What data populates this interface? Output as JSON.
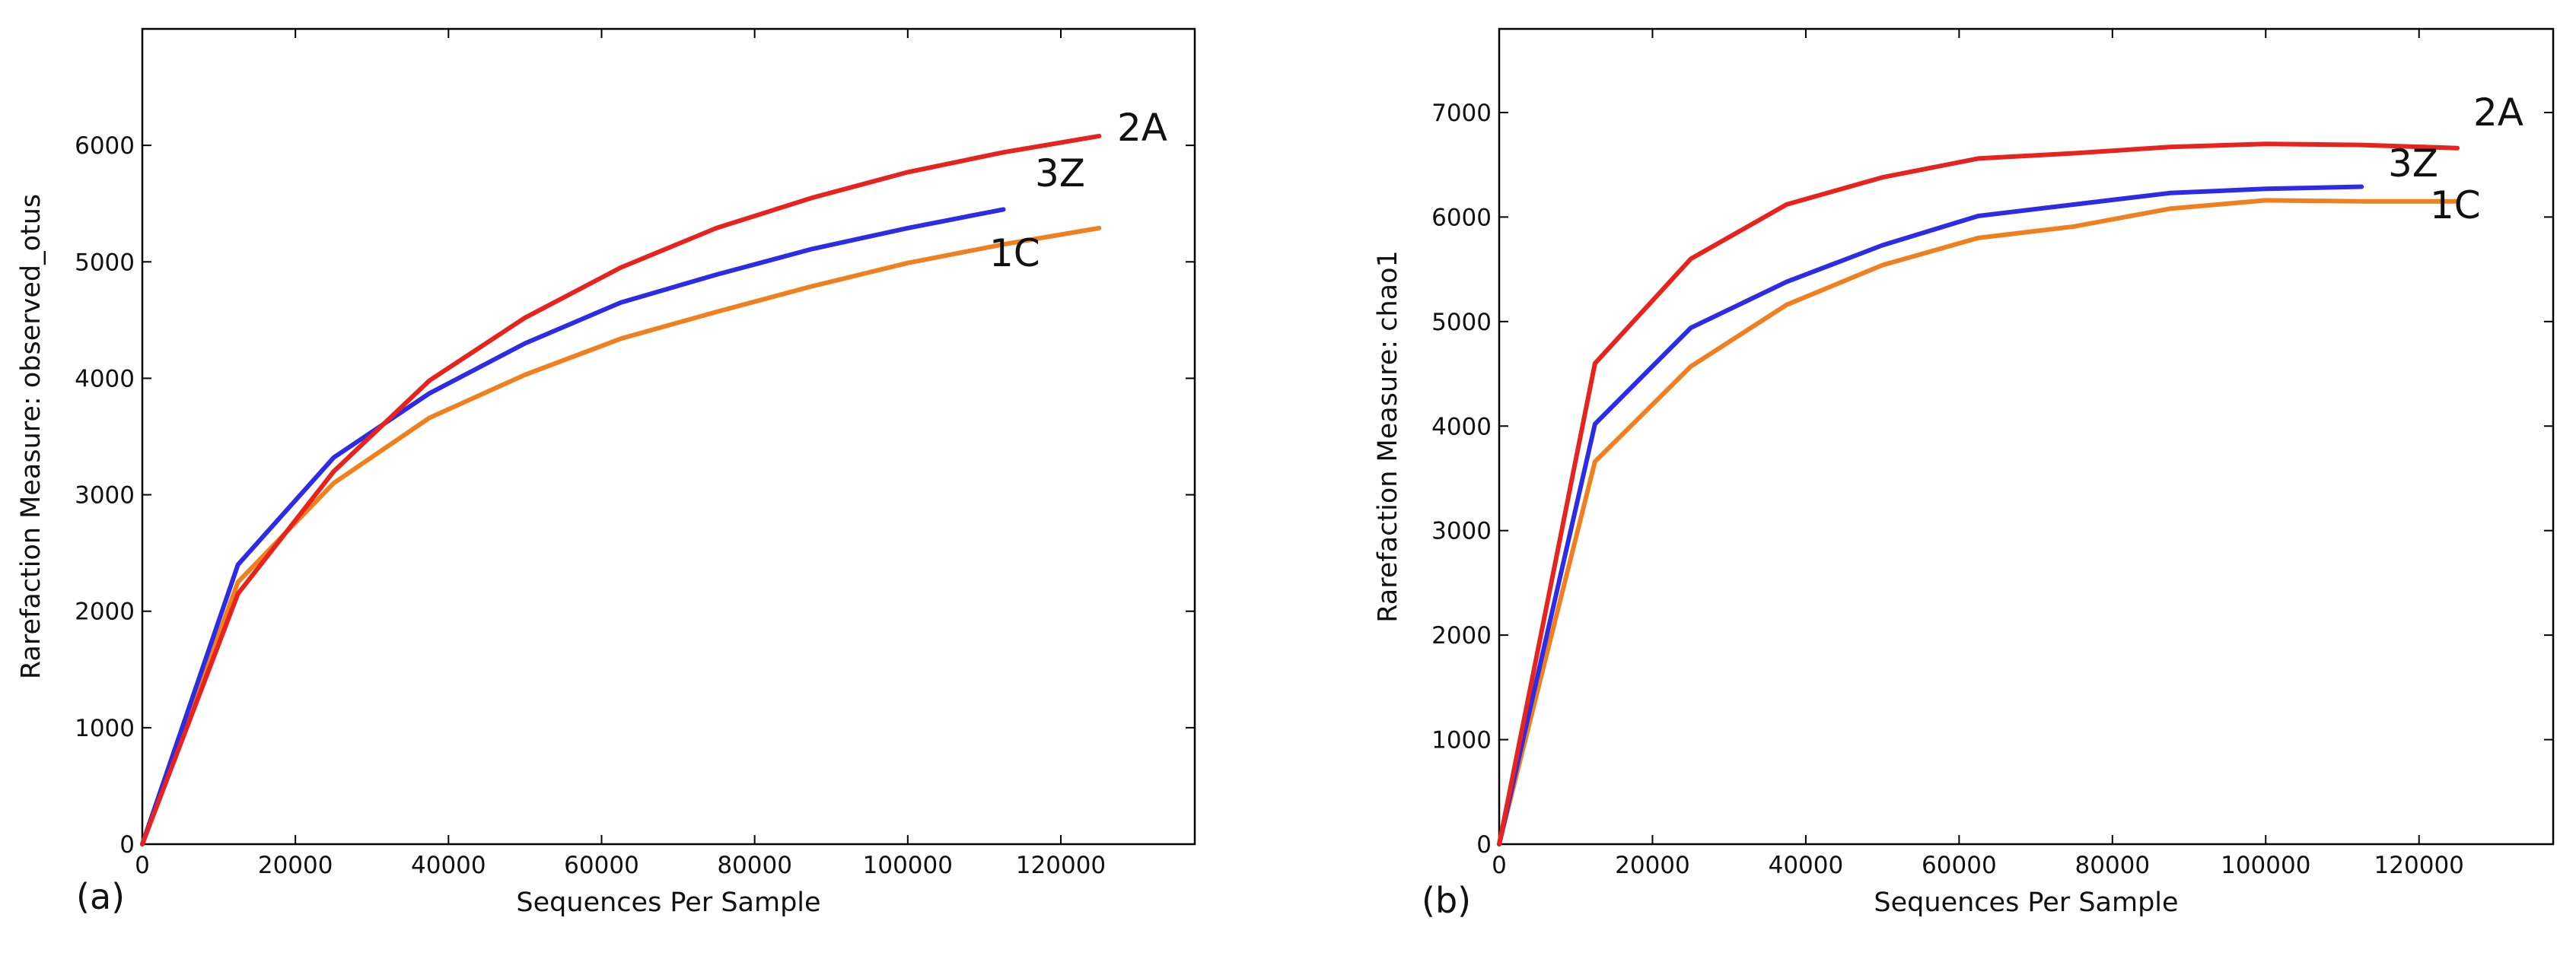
{
  "chart_data": [
    {
      "type": "line",
      "panel_label": "(a)",
      "xlabel": "Sequences Per Sample",
      "ylabel": "Rarefaction Measure: observed_otus",
      "xlim": [
        0,
        137500
      ],
      "ylim": [
        0,
        7000
      ],
      "xticks": [
        0,
        20000,
        40000,
        60000,
        80000,
        100000,
        120000
      ],
      "yticks": [
        0,
        1000,
        2000,
        3000,
        4000,
        5000,
        6000
      ],
      "xtick_labels": [
        "0",
        "20000",
        "40000",
        "60000",
        "80000",
        "100000",
        "120000"
      ],
      "ytick_labels": [
        "0",
        "1000",
        "2000",
        "3000",
        "4000",
        "5000",
        "6000"
      ],
      "grid": false,
      "series": [
        {
          "name": "2A",
          "color": "#e8221c",
          "x": [
            0,
            12500,
            25000,
            37500,
            50000,
            62500,
            75000,
            87500,
            100000,
            112500,
            125000
          ],
          "y": [
            0,
            2150,
            3200,
            3980,
            4520,
            4950,
            5290,
            5550,
            5770,
            5940,
            6080
          ]
        },
        {
          "name": "3Z",
          "color": "#2c2ce6",
          "x": [
            0,
            12500,
            25000,
            37500,
            50000,
            62500,
            75000,
            87500,
            100000,
            112500
          ],
          "y": [
            0,
            2400,
            3320,
            3870,
            4300,
            4650,
            4890,
            5110,
            5290,
            5450
          ]
        },
        {
          "name": "1C",
          "color": "#f07f1e",
          "x": [
            0,
            12500,
            25000,
            37500,
            50000,
            62500,
            75000,
            87500,
            100000,
            112500,
            125000
          ],
          "y": [
            0,
            2250,
            3100,
            3660,
            4030,
            4340,
            4570,
            4790,
            4990,
            5150,
            5290
          ]
        }
      ]
    },
    {
      "type": "line",
      "panel_label": "(b)",
      "xlabel": "Sequences Per Sample",
      "ylabel": "Rarefaction Measure: chao1",
      "xlim": [
        0,
        137500
      ],
      "ylim": [
        0,
        7800
      ],
      "xticks": [
        0,
        20000,
        40000,
        60000,
        80000,
        100000,
        120000
      ],
      "yticks": [
        0,
        1000,
        2000,
        3000,
        4000,
        5000,
        6000,
        7000
      ],
      "xtick_labels": [
        "0",
        "20000",
        "40000",
        "60000",
        "80000",
        "100000",
        "120000"
      ],
      "ytick_labels": [
        "0",
        "1000",
        "2000",
        "3000",
        "4000",
        "5000",
        "6000",
        "7000"
      ],
      "grid": false,
      "series": [
        {
          "name": "2A",
          "color": "#e8221c",
          "x": [
            0,
            12500,
            25000,
            37500,
            50000,
            62500,
            75000,
            87500,
            100000,
            112500,
            125000
          ],
          "y": [
            0,
            4600,
            5600,
            6120,
            6380,
            6560,
            6610,
            6670,
            6700,
            6690,
            6660
          ]
        },
        {
          "name": "3Z",
          "color": "#2c2ce6",
          "x": [
            0,
            12500,
            25000,
            37500,
            50000,
            62500,
            75000,
            87500,
            100000,
            112500
          ],
          "y": [
            0,
            4020,
            4940,
            5380,
            5730,
            6010,
            6120,
            6230,
            6270,
            6290
          ]
        },
        {
          "name": "1C",
          "color": "#f07f1e",
          "x": [
            0,
            12500,
            25000,
            37500,
            50000,
            62500,
            75000,
            87500,
            100000,
            112500,
            125000
          ],
          "y": [
            0,
            3660,
            4570,
            5160,
            5540,
            5800,
            5910,
            6080,
            6160,
            6150,
            6150
          ]
        }
      ]
    }
  ]
}
